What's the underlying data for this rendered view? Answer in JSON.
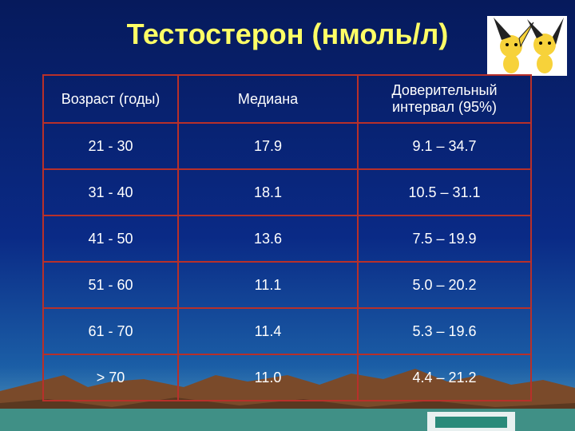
{
  "header": {
    "title": "Тестостерон (нмоль/л)"
  },
  "table": {
    "columns": [
      "Возраст (годы)",
      "Медиана",
      "Доверительный интервал (95%)"
    ],
    "rows": [
      [
        "21 - 30",
        "17.9",
        "9.1 – 34.7"
      ],
      [
        "31 - 40",
        "18.1",
        "10.5 – 31.1"
      ],
      [
        "41 - 50",
        "13.6",
        "7.5 – 19.9"
      ],
      [
        "51 - 60",
        "11.1",
        "5.0 – 20.2"
      ],
      [
        "61 - 70",
        "11.4",
        "5.3 – 19.6"
      ],
      [
        "> 70",
        "11.0",
        "4.4 – 21.2"
      ]
    ]
  }
}
